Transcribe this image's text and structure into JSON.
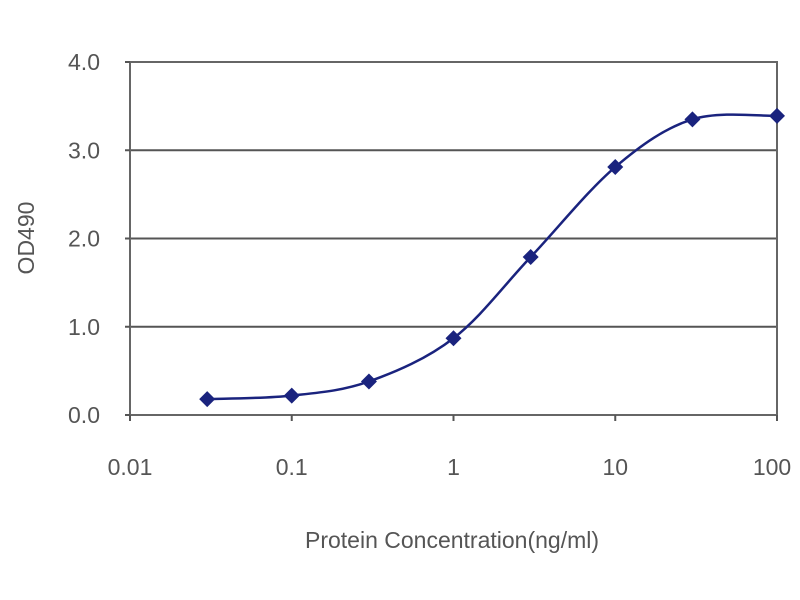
{
  "chart_data": {
    "type": "line",
    "title": "",
    "xlabel": "Protein Concentration(ng/ml)",
    "ylabel": "OD490",
    "xscale": "log",
    "xlim": [
      0.01,
      100
    ],
    "ylim": [
      0,
      4
    ],
    "xticks": [
      0.01,
      0.1,
      1,
      10,
      100
    ],
    "xtick_labels": [
      "0.01",
      "0.1",
      "1",
      "10",
      "100"
    ],
    "yticks": [
      0,
      1,
      2,
      3,
      4
    ],
    "ytick_labels": [
      "0.0",
      "1.0",
      "2.0",
      "3.0",
      "4.0"
    ],
    "grid": "horizontal",
    "legend": "none",
    "line_style": "smoothed",
    "series": [
      {
        "color": "#1a237e",
        "marker": "diamond",
        "x": [
          0.03,
          0.1,
          0.3,
          1,
          3,
          10,
          30,
          100
        ],
        "y": [
          0.18,
          0.22,
          0.38,
          0.87,
          1.79,
          2.81,
          3.35,
          3.39
        ]
      }
    ]
  }
}
